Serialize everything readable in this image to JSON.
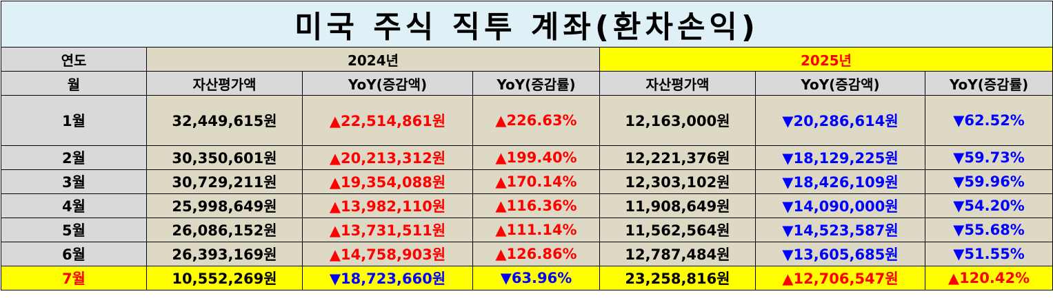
{
  "title": "미국 주식 직투 계좌(환차손익)",
  "headers": {
    "year_label": "연도",
    "month_label": "월",
    "year_2024": "2024년",
    "year_2025": "2025년",
    "asset_value": "자산평가액",
    "yoy_amount": "YoY(증감액)",
    "yoy_rate": "YoY(증감률)"
  },
  "colors": {
    "increase": "#ff0000",
    "decrease": "#0000ff",
    "highlight": "#ffff00",
    "title_bg": "#dff0f7",
    "header_bg": "#d9d9d9",
    "cell_bg": "#ddd9c4"
  },
  "rows": [
    {
      "month": "1월",
      "y2024": {
        "asset": "32,449,615원",
        "yoy_amount": "▲22,514,861원",
        "yoy_rate": "▲226.63%",
        "dir": "up"
      },
      "y2025": {
        "asset": "12,163,000원",
        "yoy_amount": "▼20,286,614원",
        "yoy_rate": "▼62.52%",
        "dir": "down"
      }
    },
    {
      "month": "2월",
      "y2024": {
        "asset": "30,350,601원",
        "yoy_amount": "▲20,213,312원",
        "yoy_rate": "▲199.40%",
        "dir": "up"
      },
      "y2025": {
        "asset": "12,221,376원",
        "yoy_amount": "▼18,129,225원",
        "yoy_rate": "▼59.73%",
        "dir": "down"
      }
    },
    {
      "month": "3월",
      "y2024": {
        "asset": "30,729,211원",
        "yoy_amount": "▲19,354,088원",
        "yoy_rate": "▲170.14%",
        "dir": "up"
      },
      "y2025": {
        "asset": "12,303,102원",
        "yoy_amount": "▼18,426,109원",
        "yoy_rate": "▼59.96%",
        "dir": "down"
      }
    },
    {
      "month": "4월",
      "y2024": {
        "asset": "25,998,649원",
        "yoy_amount": "▲13,982,110원",
        "yoy_rate": "▲116.36%",
        "dir": "up"
      },
      "y2025": {
        "asset": "11,908,649원",
        "yoy_amount": "▼14,090,000원",
        "yoy_rate": "▼54.20%",
        "dir": "down"
      }
    },
    {
      "month": "5월",
      "y2024": {
        "asset": "26,086,152원",
        "yoy_amount": "▲13,731,511원",
        "yoy_rate": "▲111.14%",
        "dir": "up"
      },
      "y2025": {
        "asset": "11,562,564원",
        "yoy_amount": "▼14,523,587원",
        "yoy_rate": "▼55.68%",
        "dir": "down"
      }
    },
    {
      "month": "6월",
      "y2024": {
        "asset": "26,393,169원",
        "yoy_amount": "▲14,758,903원",
        "yoy_rate": "▲126.86%",
        "dir": "up"
      },
      "y2025": {
        "asset": "12,787,484원",
        "yoy_amount": "▼13,605,685원",
        "yoy_rate": "▼51.55%",
        "dir": "down"
      }
    },
    {
      "month": "7월",
      "y2024": {
        "asset": "10,552,269원",
        "yoy_amount": "▼18,723,660원",
        "yoy_rate": "▼63.96%",
        "dir": "down"
      },
      "y2025": {
        "asset": "23,258,816원",
        "yoy_amount": "▲12,706,547원",
        "yoy_rate": "▲120.42%",
        "dir": "up"
      }
    }
  ]
}
